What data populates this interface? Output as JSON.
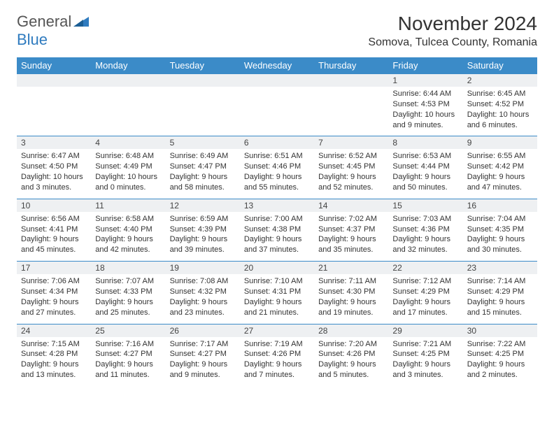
{
  "brand": {
    "part1": "General",
    "part2": "Blue"
  },
  "title": "November 2024",
  "location": "Somova, Tulcea County, Romania",
  "colors": {
    "header_bg": "#3b8bc8",
    "header_text": "#ffffff",
    "daynum_bg": "#eef0f2",
    "border": "#3b8bc8",
    "brand_blue": "#2f7bbf"
  },
  "dayNames": [
    "Sunday",
    "Monday",
    "Tuesday",
    "Wednesday",
    "Thursday",
    "Friday",
    "Saturday"
  ],
  "weeks": [
    [
      null,
      null,
      null,
      null,
      null,
      {
        "n": "1",
        "sr": "6:44 AM",
        "ss": "4:53 PM",
        "dl": "10 hours and 9 minutes."
      },
      {
        "n": "2",
        "sr": "6:45 AM",
        "ss": "4:52 PM",
        "dl": "10 hours and 6 minutes."
      }
    ],
    [
      {
        "n": "3",
        "sr": "6:47 AM",
        "ss": "4:50 PM",
        "dl": "10 hours and 3 minutes."
      },
      {
        "n": "4",
        "sr": "6:48 AM",
        "ss": "4:49 PM",
        "dl": "10 hours and 0 minutes."
      },
      {
        "n": "5",
        "sr": "6:49 AM",
        "ss": "4:47 PM",
        "dl": "9 hours and 58 minutes."
      },
      {
        "n": "6",
        "sr": "6:51 AM",
        "ss": "4:46 PM",
        "dl": "9 hours and 55 minutes."
      },
      {
        "n": "7",
        "sr": "6:52 AM",
        "ss": "4:45 PM",
        "dl": "9 hours and 52 minutes."
      },
      {
        "n": "8",
        "sr": "6:53 AM",
        "ss": "4:44 PM",
        "dl": "9 hours and 50 minutes."
      },
      {
        "n": "9",
        "sr": "6:55 AM",
        "ss": "4:42 PM",
        "dl": "9 hours and 47 minutes."
      }
    ],
    [
      {
        "n": "10",
        "sr": "6:56 AM",
        "ss": "4:41 PM",
        "dl": "9 hours and 45 minutes."
      },
      {
        "n": "11",
        "sr": "6:58 AM",
        "ss": "4:40 PM",
        "dl": "9 hours and 42 minutes."
      },
      {
        "n": "12",
        "sr": "6:59 AM",
        "ss": "4:39 PM",
        "dl": "9 hours and 39 minutes."
      },
      {
        "n": "13",
        "sr": "7:00 AM",
        "ss": "4:38 PM",
        "dl": "9 hours and 37 minutes."
      },
      {
        "n": "14",
        "sr": "7:02 AM",
        "ss": "4:37 PM",
        "dl": "9 hours and 35 minutes."
      },
      {
        "n": "15",
        "sr": "7:03 AM",
        "ss": "4:36 PM",
        "dl": "9 hours and 32 minutes."
      },
      {
        "n": "16",
        "sr": "7:04 AM",
        "ss": "4:35 PM",
        "dl": "9 hours and 30 minutes."
      }
    ],
    [
      {
        "n": "17",
        "sr": "7:06 AM",
        "ss": "4:34 PM",
        "dl": "9 hours and 27 minutes."
      },
      {
        "n": "18",
        "sr": "7:07 AM",
        "ss": "4:33 PM",
        "dl": "9 hours and 25 minutes."
      },
      {
        "n": "19",
        "sr": "7:08 AM",
        "ss": "4:32 PM",
        "dl": "9 hours and 23 minutes."
      },
      {
        "n": "20",
        "sr": "7:10 AM",
        "ss": "4:31 PM",
        "dl": "9 hours and 21 minutes."
      },
      {
        "n": "21",
        "sr": "7:11 AM",
        "ss": "4:30 PM",
        "dl": "9 hours and 19 minutes."
      },
      {
        "n": "22",
        "sr": "7:12 AM",
        "ss": "4:29 PM",
        "dl": "9 hours and 17 minutes."
      },
      {
        "n": "23",
        "sr": "7:14 AM",
        "ss": "4:29 PM",
        "dl": "9 hours and 15 minutes."
      }
    ],
    [
      {
        "n": "24",
        "sr": "7:15 AM",
        "ss": "4:28 PM",
        "dl": "9 hours and 13 minutes."
      },
      {
        "n": "25",
        "sr": "7:16 AM",
        "ss": "4:27 PM",
        "dl": "9 hours and 11 minutes."
      },
      {
        "n": "26",
        "sr": "7:17 AM",
        "ss": "4:27 PM",
        "dl": "9 hours and 9 minutes."
      },
      {
        "n": "27",
        "sr": "7:19 AM",
        "ss": "4:26 PM",
        "dl": "9 hours and 7 minutes."
      },
      {
        "n": "28",
        "sr": "7:20 AM",
        "ss": "4:26 PM",
        "dl": "9 hours and 5 minutes."
      },
      {
        "n": "29",
        "sr": "7:21 AM",
        "ss": "4:25 PM",
        "dl": "9 hours and 3 minutes."
      },
      {
        "n": "30",
        "sr": "7:22 AM",
        "ss": "4:25 PM",
        "dl": "9 hours and 2 minutes."
      }
    ]
  ],
  "labels": {
    "sunrise": "Sunrise: ",
    "sunset": "Sunset: ",
    "daylight": "Daylight: "
  }
}
